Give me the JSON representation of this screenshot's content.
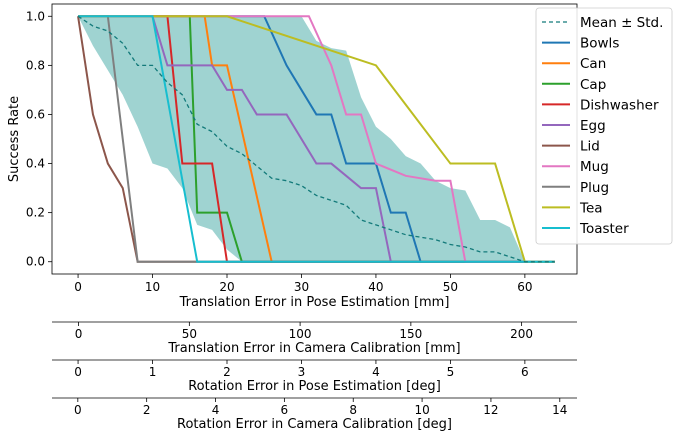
{
  "chart_data": {
    "type": "line",
    "ylabel": "Success Rate",
    "xlabel": "Translation Error in Pose Estimation [mm]",
    "x": [
      0,
      2,
      4,
      6,
      8,
      10,
      12,
      14,
      16,
      18,
      20,
      22,
      24,
      26,
      28,
      30,
      32,
      34,
      36,
      38,
      40,
      42,
      44,
      46,
      48,
      50,
      52,
      54,
      56,
      58,
      60,
      62,
      64
    ],
    "xlim": [
      -3.5,
      67
    ],
    "ylim": [
      -0.05,
      1.05
    ],
    "xticks": [
      0,
      10,
      20,
      30,
      40,
      50,
      60
    ],
    "yticks": [
      0.0,
      0.2,
      0.4,
      0.6,
      0.8,
      1.0
    ],
    "ytick_labels": [
      "0.0",
      "0.2",
      "0.4",
      "0.6",
      "0.8",
      "1.0"
    ],
    "grid": false,
    "legend_position": "top-right",
    "mean": {
      "name": "Mean ± Std.",
      "color": "#137a7a",
      "fill_color": "#5fb6b3",
      "values": [
        1.0,
        0.96,
        0.94,
        0.89,
        0.8,
        0.8,
        0.73,
        0.68,
        0.56,
        0.53,
        0.47,
        0.44,
        0.39,
        0.34,
        0.33,
        0.31,
        0.27,
        0.25,
        0.23,
        0.17,
        0.15,
        0.13,
        0.11,
        0.1,
        0.09,
        0.07,
        0.06,
        0.04,
        0.04,
        0.02,
        0.0,
        0.0,
        0.0
      ],
      "upper": [
        1.0,
        1.0,
        1.0,
        1.0,
        1.0,
        1.0,
        1.0,
        1.0,
        1.0,
        1.0,
        1.0,
        1.0,
        1.0,
        1.0,
        1.0,
        1.0,
        0.9,
        0.87,
        0.86,
        0.67,
        0.55,
        0.5,
        0.43,
        0.4,
        0.33,
        0.3,
        0.29,
        0.17,
        0.17,
        0.14,
        0.0,
        0.0,
        0.0
      ],
      "lower": [
        1.0,
        0.88,
        0.78,
        0.68,
        0.55,
        0.4,
        0.38,
        0.3,
        0.15,
        0.13,
        0.05,
        0.0,
        0.0,
        0.0,
        0.0,
        0.0,
        0.0,
        0.0,
        0.0,
        0.0,
        0.0,
        0.0,
        0.0,
        0.0,
        0.0,
        0.0,
        0.0,
        0.0,
        0.0,
        0.0,
        0.0,
        0.0,
        0.0
      ]
    },
    "series": [
      {
        "name": "Bowls",
        "color": "#1f77b4",
        "points": [
          [
            0,
            1.0
          ],
          [
            25,
            1.0
          ],
          [
            28,
            0.8
          ],
          [
            32,
            0.6
          ],
          [
            34,
            0.6
          ],
          [
            36,
            0.4
          ],
          [
            40,
            0.4
          ],
          [
            42,
            0.2
          ],
          [
            44,
            0.2
          ],
          [
            46,
            0.0
          ],
          [
            64,
            0.0
          ]
        ]
      },
      {
        "name": "Can",
        "color": "#ff7f0e",
        "points": [
          [
            0,
            1.0
          ],
          [
            17,
            1.0
          ],
          [
            18,
            0.8
          ],
          [
            20,
            0.8
          ],
          [
            26,
            0.0
          ],
          [
            64,
            0.0
          ]
        ]
      },
      {
        "name": "Cap",
        "color": "#2ca02c",
        "points": [
          [
            0,
            1.0
          ],
          [
            15,
            1.0
          ],
          [
            16,
            0.2
          ],
          [
            20,
            0.2
          ],
          [
            22,
            0.0
          ],
          [
            64,
            0.0
          ]
        ]
      },
      {
        "name": "Dishwasher",
        "color": "#d62728",
        "points": [
          [
            0,
            1.0
          ],
          [
            12,
            1.0
          ],
          [
            14,
            0.4
          ],
          [
            18,
            0.4
          ],
          [
            20,
            0.0
          ],
          [
            64,
            0.0
          ]
        ]
      },
      {
        "name": "Egg",
        "color": "#9467bd",
        "points": [
          [
            0,
            1.0
          ],
          [
            10,
            1.0
          ],
          [
            12,
            0.8
          ],
          [
            16,
            0.8
          ],
          [
            18,
            0.8
          ],
          [
            20,
            0.7
          ],
          [
            22,
            0.7
          ],
          [
            24,
            0.6
          ],
          [
            28,
            0.6
          ],
          [
            32,
            0.4
          ],
          [
            34,
            0.4
          ],
          [
            36,
            0.35
          ],
          [
            38,
            0.3
          ],
          [
            40,
            0.3
          ],
          [
            42,
            0.0
          ],
          [
            64,
            0.0
          ]
        ]
      },
      {
        "name": "Lid",
        "color": "#8c564b",
        "points": [
          [
            0,
            1.0
          ],
          [
            2,
            0.6
          ],
          [
            4,
            0.4
          ],
          [
            6,
            0.3
          ],
          [
            8,
            0.0
          ],
          [
            64,
            0.0
          ]
        ]
      },
      {
        "name": "Mug",
        "color": "#e377c2",
        "points": [
          [
            0,
            1.0
          ],
          [
            31,
            1.0
          ],
          [
            34,
            0.8
          ],
          [
            36,
            0.6
          ],
          [
            38,
            0.6
          ],
          [
            40,
            0.4
          ],
          [
            44,
            0.35
          ],
          [
            48,
            0.33
          ],
          [
            50,
            0.33
          ],
          [
            52,
            0.0
          ],
          [
            64,
            0.0
          ]
        ]
      },
      {
        "name": "Plug",
        "color": "#7f7f7f",
        "points": [
          [
            0,
            1.0
          ],
          [
            4,
            1.0
          ],
          [
            8,
            0.0
          ],
          [
            64,
            0.0
          ]
        ]
      },
      {
        "name": "Tea",
        "color": "#bcbd22",
        "points": [
          [
            0,
            1.0
          ],
          [
            20,
            1.0
          ],
          [
            40,
            0.8
          ],
          [
            50,
            0.4
          ],
          [
            56,
            0.4
          ],
          [
            60,
            0.0
          ],
          [
            64,
            0.0
          ]
        ]
      },
      {
        "name": "Toaster",
        "color": "#17becf",
        "points": [
          [
            0,
            1.0
          ],
          [
            10,
            1.0
          ],
          [
            16,
            0.0
          ],
          [
            64,
            0.0
          ]
        ]
      }
    ],
    "secondary_axes": [
      {
        "label": "Translation Error in Camera Calibration [mm]",
        "ticks": [
          0,
          50,
          100,
          150,
          200
        ],
        "tick_labels": [
          "0",
          "50",
          "100",
          "150",
          "200"
        ],
        "lim": [
          -12,
          225
        ]
      },
      {
        "label": "Rotation Error in Pose Estimation [deg]",
        "ticks": [
          0,
          1,
          2,
          3,
          4,
          5,
          6
        ],
        "tick_labels": [
          "0",
          "1",
          "2",
          "3",
          "4",
          "5",
          "6"
        ],
        "lim": [
          -0.35,
          6.7
        ]
      },
      {
        "label": "Rotation Error in Camera Calibration [deg]",
        "ticks": [
          0,
          2,
          4,
          6,
          8,
          10,
          12,
          14
        ],
        "tick_labels": [
          "0",
          "2",
          "4",
          "6",
          "8",
          "10",
          "12",
          "14"
        ],
        "lim": [
          -0.75,
          14.5
        ]
      }
    ]
  }
}
